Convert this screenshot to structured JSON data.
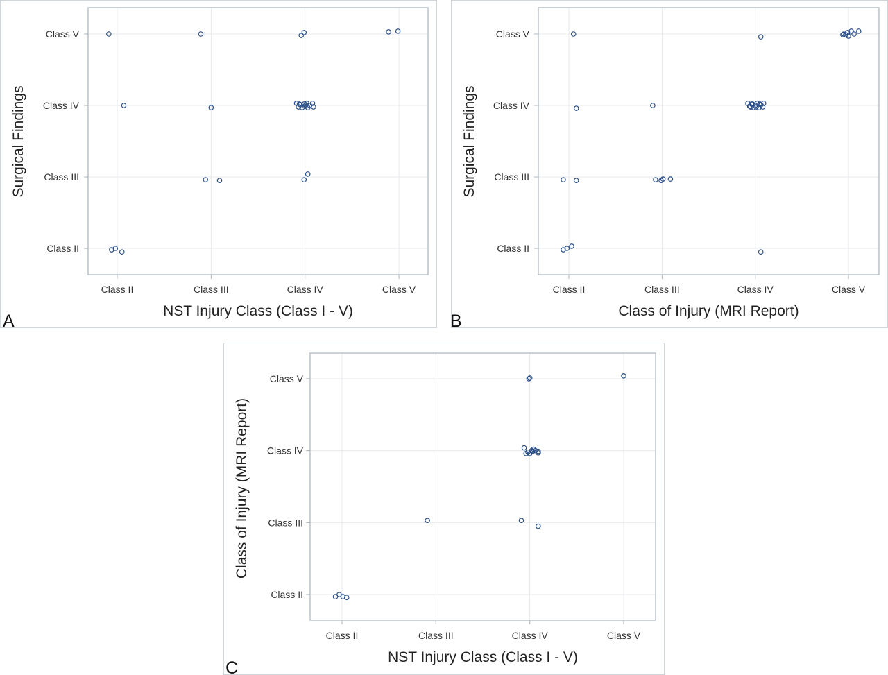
{
  "chart_data": [
    {
      "type": "scatter",
      "panel_label": "A",
      "xlabel": "NST Injury Class (Class I - V)",
      "ylabel": "Surgical Findings",
      "x_categories": [
        "Class II",
        "Class III",
        "Class IV",
        "Class V"
      ],
      "y_categories": [
        "Class II",
        "Class III",
        "Class IV",
        "Class V"
      ],
      "grid": true,
      "points": [
        {
          "x": 0.91,
          "y": 4.0
        },
        {
          "x": 1.89,
          "y": 4.0
        },
        {
          "x": 2.96,
          "y": 3.98
        },
        {
          "x": 2.99,
          "y": 4.02
        },
        {
          "x": 3.89,
          "y": 4.03
        },
        {
          "x": 3.99,
          "y": 4.04
        },
        {
          "x": 1.07,
          "y": 3.0
        },
        {
          "x": 2.0,
          "y": 2.97
        },
        {
          "x": 2.91,
          "y": 3.03
        },
        {
          "x": 2.93,
          "y": 2.98
        },
        {
          "x": 2.95,
          "y": 3.01
        },
        {
          "x": 2.97,
          "y": 2.97
        },
        {
          "x": 2.99,
          "y": 3.02
        },
        {
          "x": 3.0,
          "y": 2.99
        },
        {
          "x": 3.01,
          "y": 3.01
        },
        {
          "x": 3.03,
          "y": 2.97
        },
        {
          "x": 3.05,
          "y": 3.0
        },
        {
          "x": 3.08,
          "y": 3.03
        },
        {
          "x": 3.09,
          "y": 2.98
        },
        {
          "x": 2.94,
          "y": 3.02
        },
        {
          "x": 3.02,
          "y": 3.03
        },
        {
          "x": 1.94,
          "y": 1.96
        },
        {
          "x": 2.09,
          "y": 1.95
        },
        {
          "x": 2.99,
          "y": 1.96
        },
        {
          "x": 3.03,
          "y": 2.04
        },
        {
          "x": 0.94,
          "y": 0.98
        },
        {
          "x": 0.98,
          "y": 1.0
        },
        {
          "x": 1.05,
          "y": 0.95
        }
      ]
    },
    {
      "type": "scatter",
      "panel_label": "B",
      "xlabel": "Class of Injury (MRI Report)",
      "ylabel": "Surgical Findings",
      "x_categories": [
        "Class II",
        "Class III",
        "Class IV",
        "Class V"
      ],
      "y_categories": [
        "Class II",
        "Class III",
        "Class IV",
        "Class V"
      ],
      "grid": true,
      "points": [
        {
          "x": 1.05,
          "y": 4.0
        },
        {
          "x": 3.06,
          "y": 3.96
        },
        {
          "x": 3.94,
          "y": 3.99
        },
        {
          "x": 3.95,
          "y": 4.0
        },
        {
          "x": 3.97,
          "y": 3.99
        },
        {
          "x": 3.99,
          "y": 4.02
        },
        {
          "x": 4.0,
          "y": 3.97
        },
        {
          "x": 4.03,
          "y": 4.04
        },
        {
          "x": 4.06,
          "y": 4.0
        },
        {
          "x": 4.11,
          "y": 4.04
        },
        {
          "x": 1.08,
          "y": 2.96
        },
        {
          "x": 1.9,
          "y": 3.0
        },
        {
          "x": 2.92,
          "y": 3.03
        },
        {
          "x": 2.94,
          "y": 2.99
        },
        {
          "x": 2.96,
          "y": 3.02
        },
        {
          "x": 2.98,
          "y": 2.97
        },
        {
          "x": 3.0,
          "y": 3.0
        },
        {
          "x": 3.02,
          "y": 3.03
        },
        {
          "x": 3.04,
          "y": 2.97
        },
        {
          "x": 3.06,
          "y": 3.01
        },
        {
          "x": 3.08,
          "y": 2.98
        },
        {
          "x": 3.09,
          "y": 3.03
        },
        {
          "x": 2.97,
          "y": 3.02
        },
        {
          "x": 3.01,
          "y": 2.98
        },
        {
          "x": 3.05,
          "y": 3.02
        },
        {
          "x": 2.95,
          "y": 2.98
        },
        {
          "x": 0.94,
          "y": 1.96
        },
        {
          "x": 1.08,
          "y": 1.95
        },
        {
          "x": 1.93,
          "y": 1.96
        },
        {
          "x": 1.99,
          "y": 1.95
        },
        {
          "x": 2.01,
          "y": 1.97
        },
        {
          "x": 2.09,
          "y": 1.97
        },
        {
          "x": 0.94,
          "y": 0.98
        },
        {
          "x": 0.98,
          "y": 1.0
        },
        {
          "x": 1.03,
          "y": 1.03
        },
        {
          "x": 3.06,
          "y": 0.95
        }
      ]
    },
    {
      "type": "scatter",
      "panel_label": "C",
      "xlabel": "NST Injury Class (Class I - V)",
      "ylabel": "Class of Injury (MRI Report)",
      "x_categories": [
        "Class II",
        "Class III",
        "Class IV",
        "Class V"
      ],
      "y_categories": [
        "Class II",
        "Class III",
        "Class IV",
        "Class V"
      ],
      "grid": true,
      "points": [
        {
          "x": 2.99,
          "y": 4.0
        },
        {
          "x": 3.0,
          "y": 4.01
        },
        {
          "x": 4.0,
          "y": 4.04
        },
        {
          "x": 2.94,
          "y": 3.04
        },
        {
          "x": 2.96,
          "y": 2.96
        },
        {
          "x": 2.98,
          "y": 2.98
        },
        {
          "x": 3.0,
          "y": 2.96
        },
        {
          "x": 3.02,
          "y": 3.0
        },
        {
          "x": 3.04,
          "y": 3.02
        },
        {
          "x": 3.06,
          "y": 3.0
        },
        {
          "x": 3.09,
          "y": 2.99
        },
        {
          "x": 3.09,
          "y": 2.97
        },
        {
          "x": 3.03,
          "y": 2.99
        },
        {
          "x": 1.91,
          "y": 2.03
        },
        {
          "x": 2.91,
          "y": 2.03
        },
        {
          "x": 3.09,
          "y": 1.95
        },
        {
          "x": 0.93,
          "y": 0.97
        },
        {
          "x": 0.97,
          "y": 1.0
        },
        {
          "x": 1.01,
          "y": 0.97
        },
        {
          "x": 1.05,
          "y": 0.96
        }
      ]
    }
  ]
}
